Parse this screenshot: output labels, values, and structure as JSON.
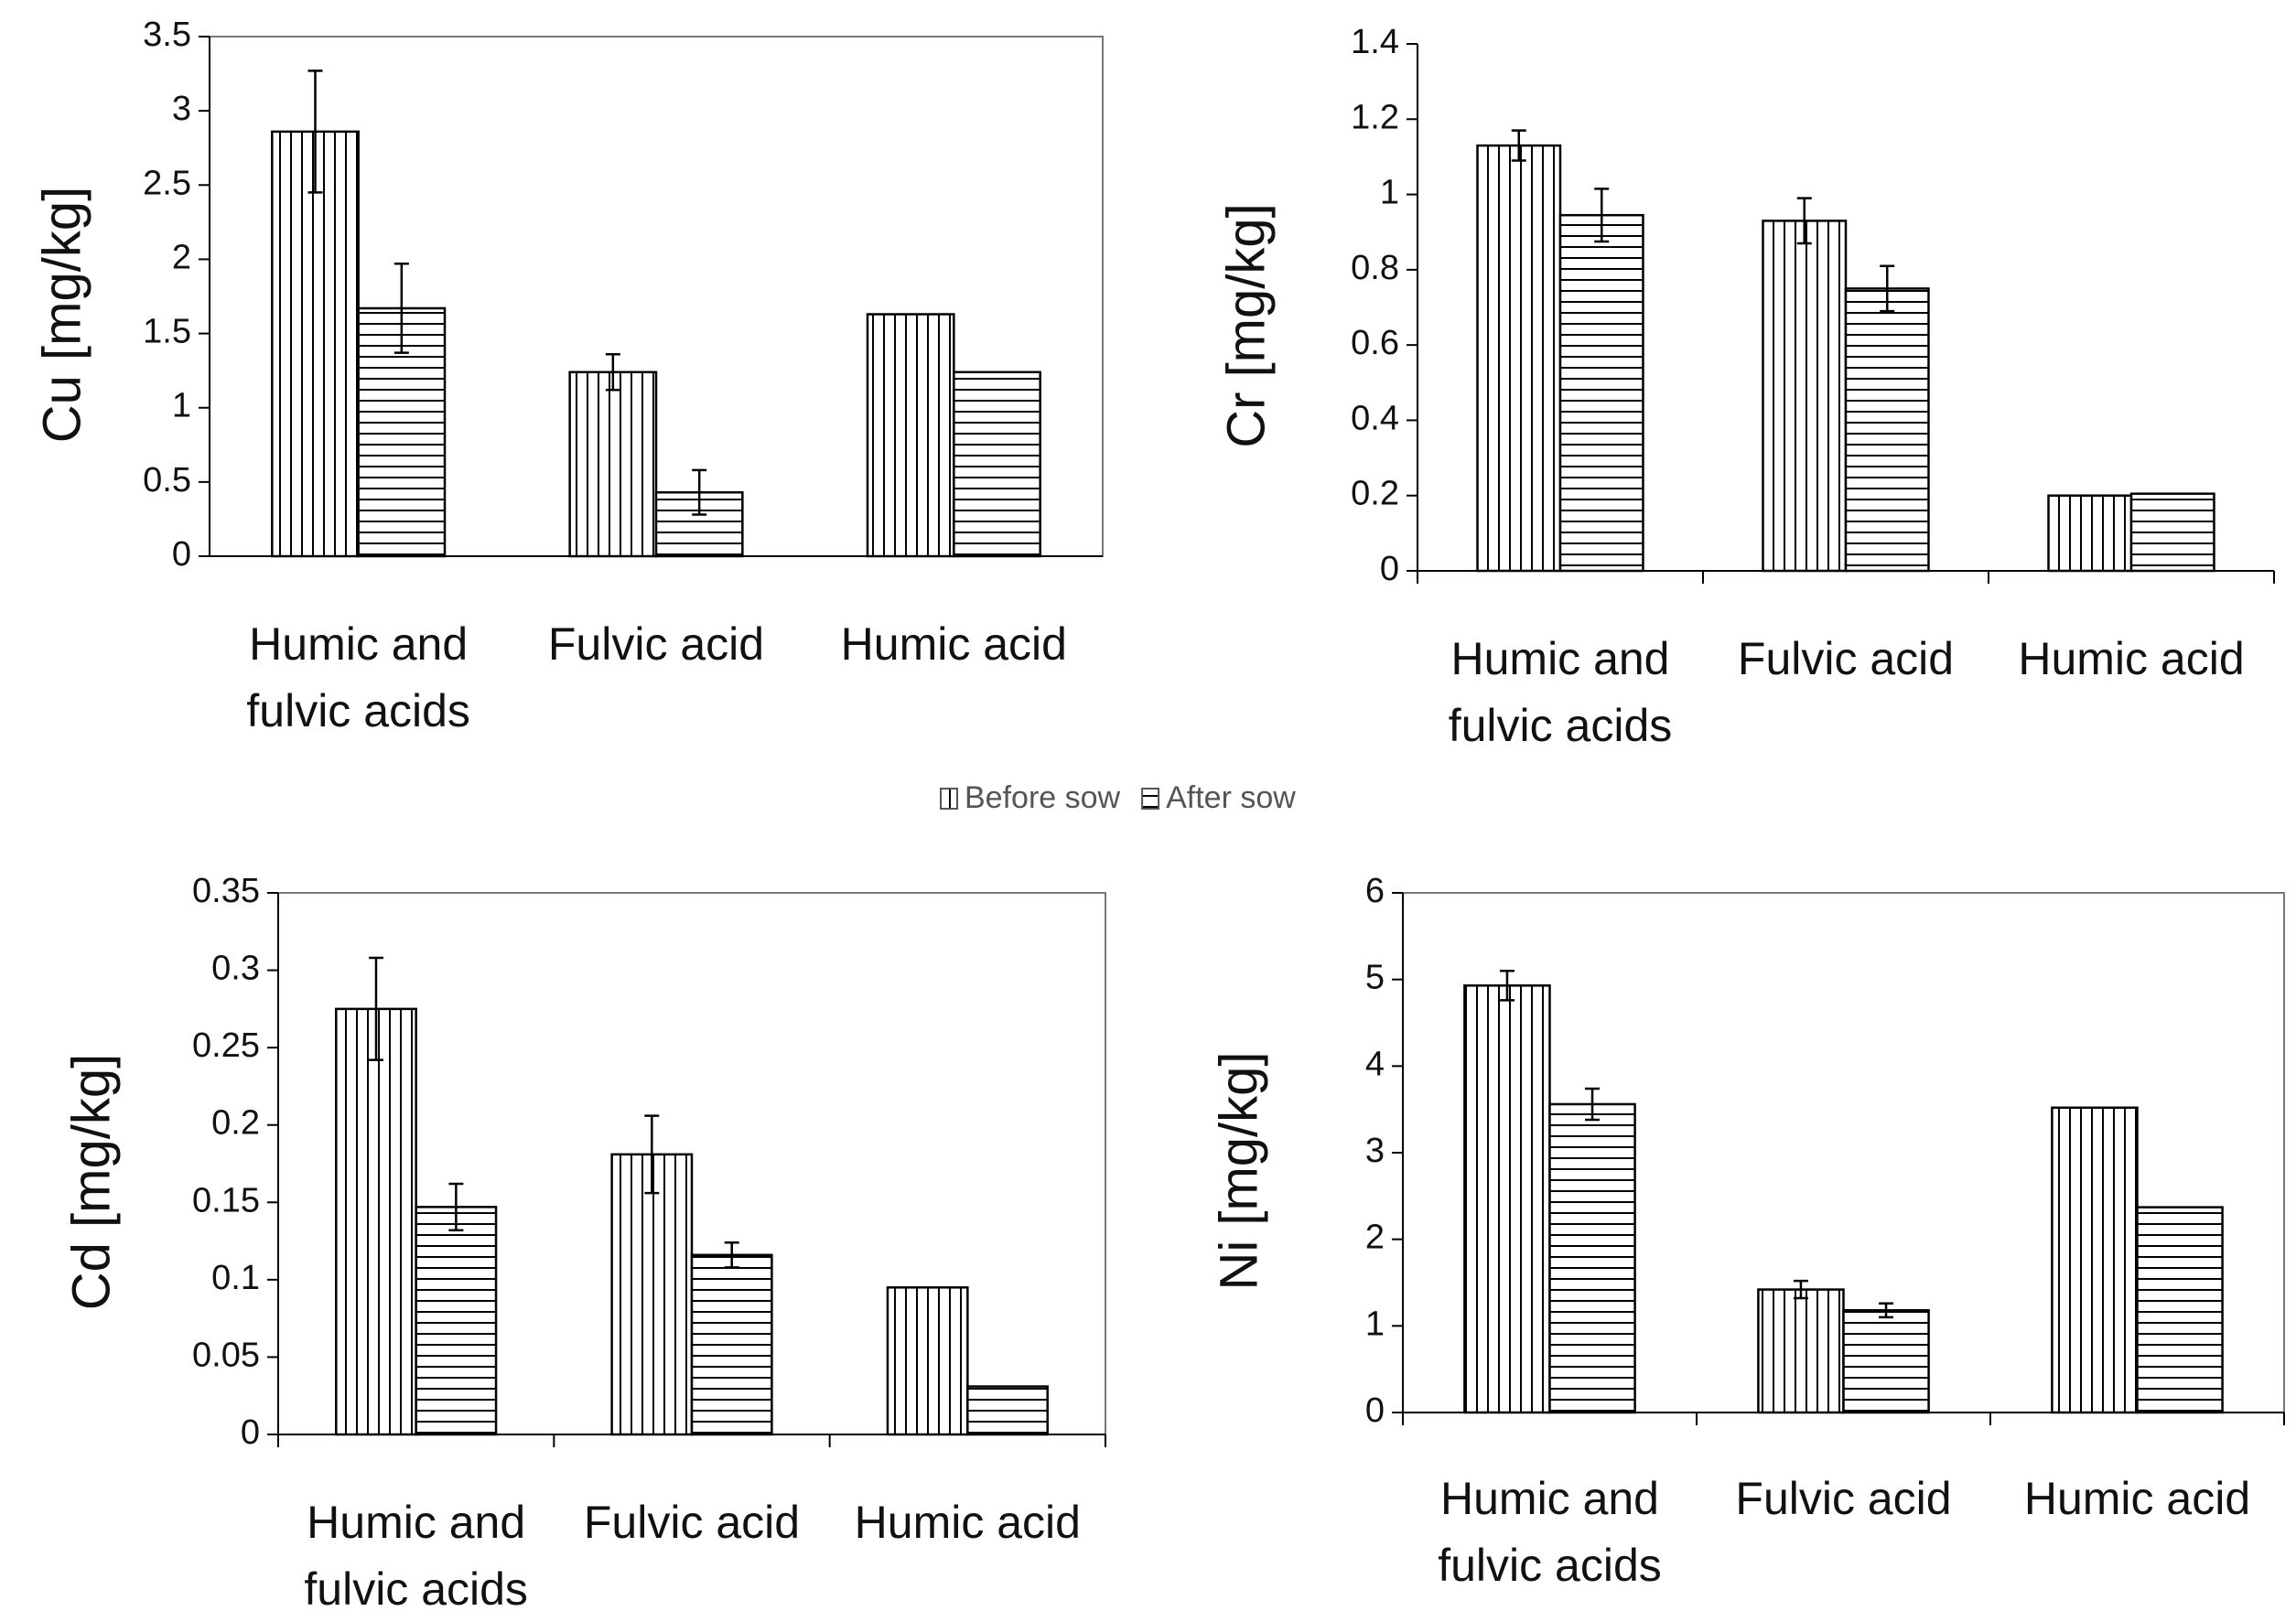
{
  "legend": {
    "entries": [
      {
        "name": "Before sow",
        "pattern": "vertical"
      },
      {
        "name": "After sow",
        "pattern": "horizontal"
      }
    ]
  },
  "chart_data": [
    {
      "type": "bar",
      "y_label": "Cu [mg/kg]",
      "categories": [
        "Humic and fulvic acids",
        "Fulvic acid",
        "Humic acid"
      ],
      "series": [
        {
          "pattern": "vertical",
          "values": [
            2.86,
            1.24,
            1.63
          ],
          "errors": [
            0.41,
            0.12,
            null
          ]
        },
        {
          "pattern": "horizontal",
          "values": [
            1.67,
            0.43,
            1.24
          ],
          "errors": [
            0.3,
            0.15,
            null
          ]
        }
      ],
      "ylim": [
        0,
        3.5
      ],
      "yticks": [
        0,
        0.5,
        1,
        1.5,
        2,
        2.5,
        3,
        3.5
      ],
      "frame": true,
      "xtick_marks": false
    },
    {
      "type": "bar",
      "y_label": "Cr [mg/kg]",
      "categories": [
        "Humic and fulvic acids",
        "Fulvic acid",
        "Humic acid"
      ],
      "series": [
        {
          "pattern": "vertical",
          "values": [
            1.13,
            0.93,
            0.2
          ],
          "errors": [
            0.04,
            0.06,
            null
          ]
        },
        {
          "pattern": "horizontal",
          "values": [
            0.945,
            0.75,
            0.205
          ],
          "errors": [
            0.07,
            0.06,
            null
          ]
        }
      ],
      "ylim": [
        0,
        1.4
      ],
      "yticks": [
        0,
        0.2,
        0.4,
        0.6,
        0.8,
        1,
        1.2,
        1.4
      ],
      "frame": false,
      "xtick_marks": true
    },
    {
      "type": "bar",
      "y_label": "Cd [mg/kg]",
      "categories": [
        "Humic and fulvic acids",
        "Fulvic acid",
        "Humic acid"
      ],
      "series": [
        {
          "pattern": "vertical",
          "values": [
            0.275,
            0.181,
            0.095
          ],
          "errors": [
            0.033,
            0.025,
            null
          ]
        },
        {
          "pattern": "horizontal",
          "values": [
            0.147,
            0.116,
            0.031
          ],
          "errors": [
            0.015,
            0.008,
            null
          ]
        }
      ],
      "ylim": [
        0,
        0.35
      ],
      "yticks": [
        0,
        0.05,
        0.1,
        0.15,
        0.2,
        0.25,
        0.3,
        0.35
      ],
      "frame": true,
      "xtick_marks": true
    },
    {
      "type": "bar",
      "y_label": "Ni [mg/kg]",
      "categories": [
        "Humic and fulvic acids",
        "Fulvic acid",
        "Humic acid"
      ],
      "series": [
        {
          "pattern": "vertical",
          "values": [
            4.93,
            1.42,
            3.52
          ],
          "errors": [
            0.17,
            0.1,
            null
          ]
        },
        {
          "pattern": "horizontal",
          "values": [
            3.56,
            1.18,
            2.37
          ],
          "errors": [
            0.18,
            0.08,
            null
          ]
        }
      ],
      "ylim": [
        0,
        6
      ],
      "yticks": [
        0,
        1,
        2,
        3,
        4,
        5,
        6
      ],
      "frame": true,
      "xtick_marks": true
    }
  ]
}
